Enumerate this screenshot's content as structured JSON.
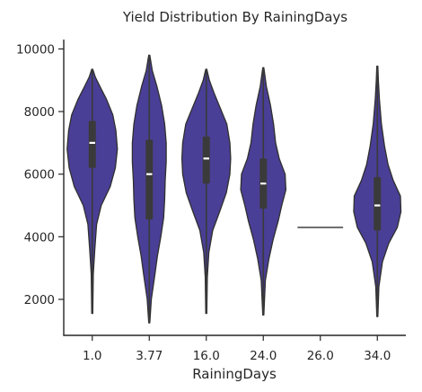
{
  "chart_data": {
    "type": "violin",
    "title": "Yield Distribution By RainingDays",
    "xlabel": "RainingDays",
    "ylabel": "",
    "ylim": [
      850,
      10300
    ],
    "yticks": [
      2000,
      4000,
      6000,
      8000,
      10000
    ],
    "categories": [
      "1.0",
      "3.77",
      "16.0",
      "24.0",
      "26.0",
      "34.0"
    ],
    "fill_color": "#4a3f96",
    "edge_color": "#2f2f2f",
    "median_color": "#ffffff",
    "series": [
      {
        "category": "1.0",
        "min": 1550,
        "q1": 6200,
        "median": 7000,
        "q3": 7700,
        "max": 9350,
        "profile": [
          [
            1550,
            0.02
          ],
          [
            2800,
            0.04
          ],
          [
            3600,
            0.1
          ],
          [
            4400,
            0.17
          ],
          [
            5000,
            0.35
          ],
          [
            5600,
            0.7
          ],
          [
            6200,
            0.9
          ],
          [
            6800,
            0.98
          ],
          [
            7400,
            0.92
          ],
          [
            7900,
            0.8
          ],
          [
            8400,
            0.55
          ],
          [
            8800,
            0.3
          ],
          [
            9100,
            0.12
          ],
          [
            9350,
            0.02
          ]
        ]
      },
      {
        "category": "3.77",
        "min": 1250,
        "q1": 4550,
        "median": 6000,
        "q3": 7100,
        "max": 9800,
        "profile": [
          [
            1250,
            0.02
          ],
          [
            2000,
            0.08
          ],
          [
            2800,
            0.22
          ],
          [
            3400,
            0.32
          ],
          [
            4000,
            0.45
          ],
          [
            4600,
            0.56
          ],
          [
            5200,
            0.6
          ],
          [
            5800,
            0.62
          ],
          [
            6400,
            0.66
          ],
          [
            7000,
            0.66
          ],
          [
            7600,
            0.6
          ],
          [
            8200,
            0.48
          ],
          [
            8800,
            0.3
          ],
          [
            9300,
            0.12
          ],
          [
            9800,
            0.02
          ]
        ]
      },
      {
        "category": "16.0",
        "min": 1550,
        "q1": 5700,
        "median": 6500,
        "q3": 7200,
        "max": 9350,
        "profile": [
          [
            1550,
            0.02
          ],
          [
            2700,
            0.04
          ],
          [
            3500,
            0.1
          ],
          [
            4200,
            0.25
          ],
          [
            4800,
            0.52
          ],
          [
            5400,
            0.78
          ],
          [
            6000,
            0.92
          ],
          [
            6500,
            0.95
          ],
          [
            7000,
            0.92
          ],
          [
            7600,
            0.8
          ],
          [
            8100,
            0.55
          ],
          [
            8600,
            0.3
          ],
          [
            9000,
            0.12
          ],
          [
            9350,
            0.02
          ]
        ]
      },
      {
        "category": "24.0",
        "min": 1500,
        "q1": 4900,
        "median": 5700,
        "q3": 6500,
        "max": 9400,
        "profile": [
          [
            1500,
            0.02
          ],
          [
            2600,
            0.08
          ],
          [
            3300,
            0.22
          ],
          [
            3900,
            0.38
          ],
          [
            4500,
            0.58
          ],
          [
            5000,
            0.72
          ],
          [
            5500,
            0.88
          ],
          [
            6000,
            0.85
          ],
          [
            6500,
            0.62
          ],
          [
            7000,
            0.48
          ],
          [
            7600,
            0.4
          ],
          [
            8200,
            0.28
          ],
          [
            8800,
            0.12
          ],
          [
            9400,
            0.02
          ]
        ]
      },
      {
        "category": "26.0",
        "value": 4300
      },
      {
        "category": "34.0",
        "min": 1450,
        "q1": 4200,
        "median": 5000,
        "q3": 5900,
        "max": 9450,
        "profile": [
          [
            1450,
            0.02
          ],
          [
            2400,
            0.06
          ],
          [
            3200,
            0.2
          ],
          [
            3800,
            0.45
          ],
          [
            4300,
            0.78
          ],
          [
            4800,
            0.92
          ],
          [
            5300,
            0.9
          ],
          [
            5800,
            0.62
          ],
          [
            6300,
            0.42
          ],
          [
            6900,
            0.28
          ],
          [
            7600,
            0.16
          ],
          [
            8400,
            0.08
          ],
          [
            9000,
            0.04
          ],
          [
            9450,
            0.02
          ]
        ]
      }
    ]
  }
}
